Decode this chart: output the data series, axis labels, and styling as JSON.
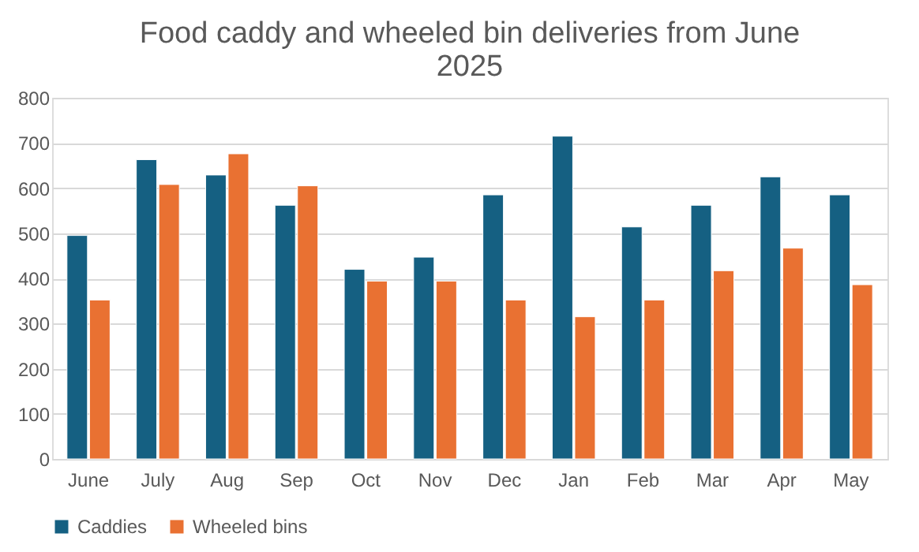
{
  "chart_data": {
    "type": "bar",
    "title": "Food caddy and wheeled bin deliveries from June 2025",
    "categories": [
      "June",
      "July",
      "Aug",
      "Sep",
      "Oct",
      "Nov",
      "Dec",
      "Jan",
      "Feb",
      "Mar",
      "Apr",
      "May"
    ],
    "series": [
      {
        "name": "Caddies",
        "color": "#156082",
        "values": [
          495,
          663,
          629,
          562,
          420,
          447,
          585,
          715,
          514,
          562,
          625,
          585
        ]
      },
      {
        "name": "Wheeled bins",
        "color": "#e97132",
        "values": [
          352,
          608,
          676,
          605,
          394,
          394,
          352,
          315,
          352,
          417,
          467,
          386
        ]
      }
    ],
    "ylim": [
      0,
      800
    ],
    "yticks": [
      0,
      100,
      200,
      300,
      400,
      500,
      600,
      700,
      800
    ],
    "grid": "y",
    "legend": "bottom"
  }
}
